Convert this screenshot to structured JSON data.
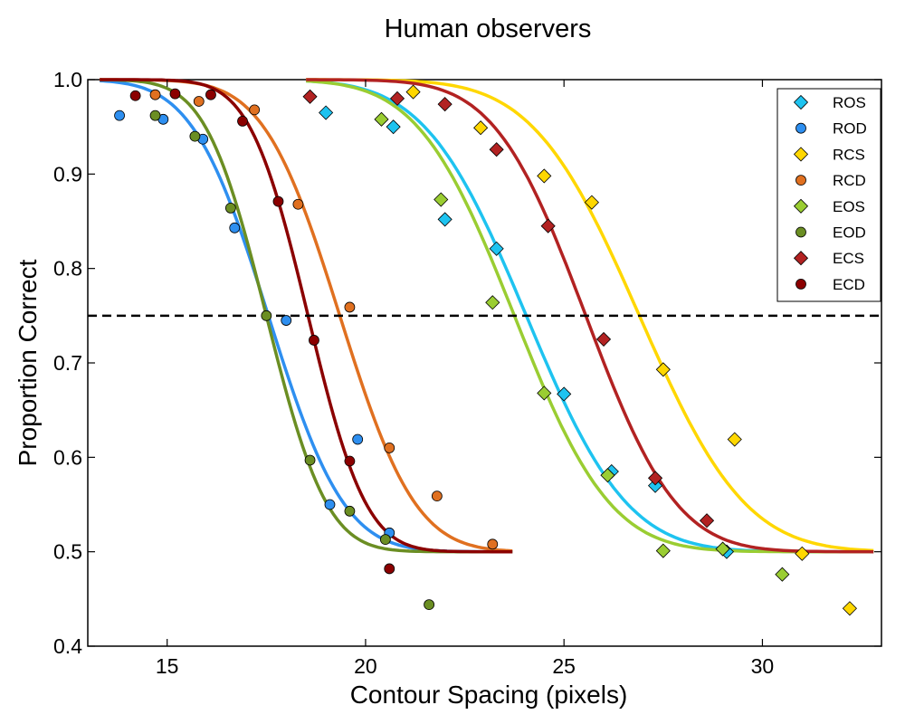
{
  "chart_data": {
    "type": "scatter",
    "title": "Human observers",
    "xlabel": "Contour Spacing (pixels)",
    "ylabel": "Proportion Correct",
    "xlim": [
      13.0,
      33.0
    ],
    "ylim": [
      0.4,
      1.0
    ],
    "xticks": [
      15,
      20,
      25,
      30
    ],
    "yticks": [
      0.4,
      0.5,
      0.6,
      0.7,
      0.8,
      0.9,
      1.0
    ],
    "threshold_line": 0.75,
    "legend_position": "top-right",
    "series": [
      {
        "name": "ROS",
        "marker": "diamond",
        "color": "#1ec3f0",
        "points": [
          [
            19.0,
            0.965
          ],
          [
            20.7,
            0.95
          ],
          [
            22.0,
            0.852
          ],
          [
            23.3,
            0.821
          ],
          [
            25.0,
            0.667
          ],
          [
            26.2,
            0.585
          ],
          [
            27.3,
            0.57
          ],
          [
            29.1,
            0.5
          ]
        ],
        "fit_range": [
          18.5,
          32.8
        ],
        "fit_mu": 24.05,
        "fit_sigma": 2.0
      },
      {
        "name": "ROD",
        "marker": "circle",
        "color": "#2e8ff0",
        "points": [
          [
            13.8,
            0.962
          ],
          [
            14.9,
            0.958
          ],
          [
            15.9,
            0.937
          ],
          [
            16.7,
            0.843
          ],
          [
            18.0,
            0.745
          ],
          [
            19.1,
            0.55
          ],
          [
            19.8,
            0.619
          ],
          [
            20.6,
            0.52
          ]
        ],
        "fit_range": [
          13.3,
          23.7
        ],
        "fit_mu": 17.55,
        "fit_sigma": 1.5
      },
      {
        "name": "RCS",
        "marker": "diamond",
        "color": "#ffd700",
        "points": [
          [
            21.2,
            0.987
          ],
          [
            22.9,
            0.949
          ],
          [
            24.5,
            0.898
          ],
          [
            25.7,
            0.87
          ],
          [
            27.5,
            0.693
          ],
          [
            29.3,
            0.619
          ],
          [
            31.0,
            0.498
          ],
          [
            32.2,
            0.44
          ]
        ],
        "fit_range": [
          18.5,
          32.8
        ],
        "fit_mu": 26.9,
        "fit_sigma": 2.1
      },
      {
        "name": "RCD",
        "marker": "circle",
        "color": "#e07020",
        "points": [
          [
            14.7,
            0.984
          ],
          [
            15.8,
            0.977
          ],
          [
            17.2,
            0.968
          ],
          [
            18.3,
            0.868
          ],
          [
            19.6,
            0.759
          ],
          [
            20.6,
            0.61
          ],
          [
            21.8,
            0.559
          ],
          [
            23.2,
            0.508
          ]
        ],
        "fit_range": [
          13.3,
          23.7
        ],
        "fit_mu": 19.35,
        "fit_sigma": 1.5
      },
      {
        "name": "EOS",
        "marker": "diamond",
        "color": "#9acd32",
        "points": [
          [
            20.4,
            0.958
          ],
          [
            21.9,
            0.873
          ],
          [
            23.2,
            0.764
          ],
          [
            24.5,
            0.668
          ],
          [
            26.1,
            0.581
          ],
          [
            27.5,
            0.501
          ],
          [
            29.0,
            0.503
          ],
          [
            30.5,
            0.476
          ]
        ],
        "fit_range": [
          18.5,
          32.8
        ],
        "fit_mu": 23.75,
        "fit_sigma": 1.9
      },
      {
        "name": "EOD",
        "marker": "circle",
        "color": "#6b8e23",
        "points": [
          [
            14.7,
            0.962
          ],
          [
            15.7,
            0.94
          ],
          [
            16.6,
            0.864
          ],
          [
            17.5,
            0.75
          ],
          [
            18.6,
            0.597
          ],
          [
            19.6,
            0.543
          ],
          [
            20.5,
            0.513
          ],
          [
            21.6,
            0.444
          ]
        ],
        "fit_range": [
          13.3,
          23.7
        ],
        "fit_mu": 17.5,
        "fit_sigma": 1.2
      },
      {
        "name": "ECS",
        "marker": "diamond",
        "color": "#b22222",
        "points": [
          [
            18.6,
            0.982
          ],
          [
            20.8,
            0.98
          ],
          [
            22.0,
            0.974
          ],
          [
            23.3,
            0.926
          ],
          [
            24.6,
            0.845
          ],
          [
            26.0,
            0.725
          ],
          [
            27.3,
            0.578
          ],
          [
            28.6,
            0.533
          ]
        ],
        "fit_range": [
          18.5,
          32.8
        ],
        "fit_mu": 25.55,
        "fit_sigma": 1.8
      },
      {
        "name": "ECD",
        "marker": "circle",
        "color": "#8b0000",
        "points": [
          [
            14.2,
            0.983
          ],
          [
            15.2,
            0.985
          ],
          [
            16.1,
            0.984
          ],
          [
            16.9,
            0.956
          ],
          [
            17.8,
            0.871
          ],
          [
            18.7,
            0.724
          ],
          [
            19.6,
            0.596
          ],
          [
            20.6,
            0.482
          ]
        ],
        "fit_range": [
          13.3,
          23.7
        ],
        "fit_mu": 18.55,
        "fit_sigma": 1.15
      }
    ]
  }
}
